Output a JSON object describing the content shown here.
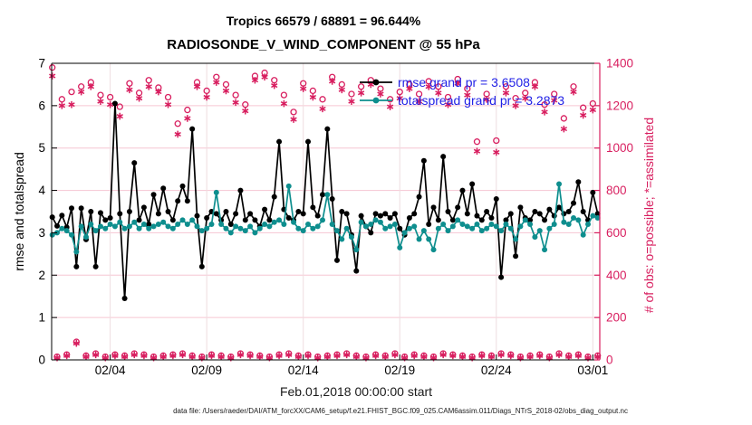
{
  "title": {
    "line1": "Tropics 66579 / 68891 = 96.644%",
    "line2": "RADIOSONDE_V_WIND_COMPONENT @ 55 hPa"
  },
  "axes": {
    "left_label": "rmse and totalspread",
    "right_label": "# of obs: o=possible; *=assimilated",
    "x_label": "Feb.01,2018 00:00:00 start",
    "left_ticks": [
      "0",
      "1",
      "2",
      "3",
      "4",
      "5",
      "6",
      "7"
    ],
    "right_ticks": [
      "0",
      "200",
      "400",
      "600",
      "800",
      "1000",
      "1200",
      "1400"
    ],
    "x_tick_labels": [
      "02/04",
      "02/09",
      "02/14",
      "02/19",
      "02/24",
      "03/01"
    ],
    "x_tick_indices": [
      12,
      32,
      52,
      72,
      92,
      112
    ],
    "left_range": [
      0,
      7
    ],
    "right_range": [
      0,
      1400
    ],
    "grid": "on"
  },
  "legend": {
    "items": [
      {
        "label": "rmse grand pr = 3.6508",
        "series": "rmse",
        "color": "#000000"
      },
      {
        "label": "totalspread grand pr = 3.2873",
        "series": "totalspread",
        "color": "#0e8e8e"
      }
    ],
    "text_color": "#2222e6",
    "position": "northeast-inside"
  },
  "footer": {
    "datafile": "data file: /Users/raeder/DAI/ATM_forcXX/CAM6_setup/f.e21.FHIST_BGC.f09_025.CAM6assim.011/Diags_NTrS_2018-02/obs_diag_output.nc"
  },
  "colors": {
    "rmse": "#000000",
    "totalspread": "#0e8e8e",
    "obs_counts": "#d81e5f",
    "legend_text": "#2222e6",
    "grid_horizontal": "#f6c6d2",
    "grid_vertical": "#eedde0",
    "left_axis": "#000000",
    "right_axis": "#d81e5f"
  },
  "chart_data": {
    "type": "line",
    "x_start": "2018-02-01 00:00:00",
    "x_step_hours": 6,
    "n_points": 114,
    "xlim_index": [
      -1.2,
      113.9
    ],
    "left_ylim": [
      0,
      7
    ],
    "right_ylim": [
      0,
      1400
    ],
    "series": [
      {
        "name": "rmse",
        "axis": "left",
        "marker": "filled-circle",
        "color": "#000000",
        "values": [
          3.37,
          3.16,
          3.41,
          3.13,
          3.58,
          2.2,
          3.58,
          2.84,
          3.5,
          2.2,
          3.47,
          3.3,
          3.35,
          6.05,
          3.45,
          1.45,
          3.5,
          4.65,
          3.3,
          3.6,
          3.2,
          3.9,
          3.45,
          4.05,
          3.5,
          3.3,
          3.75,
          4.1,
          3.75,
          5.45,
          3.4,
          2.2,
          3.35,
          3.5,
          3.45,
          3.3,
          3.5,
          3.2,
          3.45,
          4.0,
          3.3,
          3.45,
          3.3,
          3.15,
          3.55,
          3.3,
          3.85,
          5.15,
          3.55,
          3.35,
          3.3,
          3.5,
          3.45,
          5.15,
          3.6,
          3.4,
          3.9,
          5.45,
          3.8,
          2.35,
          3.5,
          3.45,
          2.95,
          2.1,
          3.4,
          3.15,
          3.0,
          3.45,
          3.4,
          3.45,
          3.35,
          3.45,
          3.1,
          2.95,
          3.35,
          3.45,
          3.85,
          4.7,
          3.2,
          3.6,
          3.3,
          4.8,
          3.5,
          3.3,
          3.6,
          4.0,
          3.45,
          4.15,
          3.4,
          3.3,
          3.5,
          3.35,
          3.8,
          1.95,
          3.3,
          3.45,
          2.45,
          3.6,
          3.35,
          3.3,
          3.5,
          3.45,
          3.3,
          3.55,
          3.4,
          3.6,
          3.45,
          3.5,
          3.7,
          4.2,
          3.5,
          3.3,
          3.95,
          3.45
        ]
      },
      {
        "name": "totalspread",
        "axis": "left",
        "marker": "filled-circle",
        "color": "#0e8e8e",
        "values": [
          2.95,
          3.0,
          3.1,
          3.05,
          2.95,
          2.55,
          3.15,
          2.9,
          3.2,
          3.05,
          3.15,
          3.1,
          3.2,
          3.15,
          3.25,
          3.1,
          3.15,
          3.25,
          3.1,
          3.2,
          3.1,
          3.15,
          3.2,
          3.25,
          3.15,
          3.1,
          3.2,
          3.3,
          3.2,
          3.3,
          3.15,
          3.05,
          3.1,
          3.2,
          3.95,
          3.2,
          3.1,
          3.0,
          3.15,
          3.1,
          3.05,
          3.15,
          3.0,
          3.1,
          3.2,
          3.15,
          3.25,
          3.3,
          3.2,
          4.1,
          3.25,
          3.1,
          3.05,
          3.2,
          3.1,
          3.15,
          3.3,
          3.9,
          3.2,
          3.05,
          2.85,
          3.1,
          2.9,
          2.6,
          3.25,
          3.15,
          3.2,
          3.3,
          3.25,
          3.1,
          3.15,
          3.2,
          2.65,
          3.0,
          3.1,
          3.15,
          2.85,
          3.05,
          2.85,
          2.6,
          3.1,
          3.2,
          3.05,
          3.15,
          3.3,
          3.2,
          3.15,
          3.1,
          3.2,
          3.05,
          3.1,
          3.2,
          3.15,
          3.05,
          3.2,
          3.1,
          2.85,
          3.15,
          3.3,
          3.2,
          2.9,
          3.05,
          2.6,
          3.1,
          3.2,
          4.15,
          3.25,
          3.2,
          3.35,
          3.3,
          2.95,
          3.2,
          3.4,
          3.35
        ]
      },
      {
        "name": "n_possible",
        "axis": "right",
        "marker": "open-circle",
        "color": "#d81e5f",
        "values": [
          1380,
          15,
          1230,
          25,
          1265,
          85,
          1290,
          20,
          1310,
          30,
          1250,
          15,
          1240,
          25,
          1195,
          20,
          1305,
          30,
          1260,
          25,
          1320,
          15,
          1285,
          20,
          1240,
          25,
          1115,
          30,
          1180,
          20,
          1310,
          15,
          1270,
          25,
          1335,
          20,
          1300,
          15,
          1250,
          30,
          1205,
          25,
          1340,
          20,
          1355,
          15,
          1320,
          25,
          1250,
          30,
          1170,
          20,
          1305,
          25,
          1270,
          15,
          1230,
          20,
          1335,
          25,
          1300,
          30,
          1255,
          20,
          1290,
          15,
          1320,
          25,
          1280,
          20,
          1230,
          30,
          1265,
          15,
          1300,
          25,
          1255,
          20,
          1315,
          15,
          1290,
          30,
          1240,
          25,
          1325,
          20,
          1280,
          15,
          1030,
          25,
          1255,
          20,
          1035,
          30,
          1290,
          25,
          1235,
          15,
          1260,
          20,
          1310,
          25,
          1205,
          15,
          1255,
          30,
          1140,
          20,
          1290,
          25,
          1190,
          15,
          1210,
          20
        ]
      },
      {
        "name": "n_assimilated",
        "axis": "right",
        "marker": "asterisk",
        "color": "#d81e5f",
        "values": [
          1340,
          10,
          1200,
          20,
          1205,
          78,
          1265,
          15,
          1290,
          24,
          1220,
          10,
          1205,
          20,
          1150,
          15,
          1275,
          24,
          1235,
          20,
          1290,
          10,
          1265,
          15,
          1205,
          20,
          1065,
          24,
          1140,
          15,
          1290,
          10,
          1240,
          20,
          1310,
          15,
          1270,
          10,
          1215,
          24,
          1175,
          20,
          1320,
          15,
          1335,
          10,
          1295,
          20,
          1210,
          24,
          1135,
          15,
          1280,
          20,
          1240,
          10,
          1185,
          15,
          1315,
          20,
          1275,
          24,
          1220,
          15,
          1260,
          10,
          1300,
          20,
          1255,
          15,
          1195,
          24,
          1235,
          10,
          1280,
          20,
          1220,
          15,
          1290,
          10,
          1260,
          24,
          1205,
          20,
          1305,
          15,
          1250,
          10,
          985,
          20,
          1230,
          15,
          980,
          24,
          1260,
          20,
          1200,
          10,
          1235,
          15,
          1290,
          20,
          1170,
          10,
          1225,
          24,
          1090,
          15,
          1265,
          20,
          1155,
          10,
          1180,
          15
        ]
      }
    ]
  }
}
